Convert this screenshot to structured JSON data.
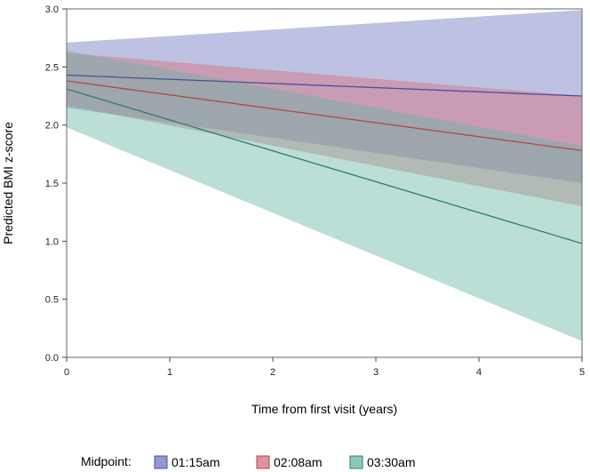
{
  "chart_data": {
    "type": "line",
    "title": "",
    "xlabel": "Time from first visit (years)",
    "ylabel": "Predicted BMI z-score",
    "xlim": [
      0,
      5
    ],
    "ylim": [
      0,
      3
    ],
    "x_ticks": [
      "0",
      "1",
      "2",
      "3",
      "4",
      "5"
    ],
    "y_ticks": [
      "0.0",
      "0.5",
      "1.0",
      "1.5",
      "2.0",
      "2.5",
      "3.0"
    ],
    "grid": false,
    "legend": {
      "title": "Midpoint:",
      "position": "bottom"
    },
    "series": [
      {
        "name": "01:15am",
        "line_color": "#4a4f9e",
        "band_color": "#6f77bf",
        "x": [
          0,
          5
        ],
        "y": [
          2.43,
          2.25
        ],
        "lower": [
          2.15,
          1.5
        ],
        "upper": [
          2.71,
          2.99
        ]
      },
      {
        "name": "02:08am",
        "line_color": "#b04a45",
        "band_color": "#d86e7c",
        "x": [
          0,
          5
        ],
        "y": [
          2.38,
          1.78
        ],
        "lower": [
          2.17,
          1.3
        ],
        "upper": [
          2.62,
          2.25
        ]
      },
      {
        "name": "03:30am",
        "line_color": "#2e7d6e",
        "band_color": "#68b5a5",
        "x": [
          0,
          5
        ],
        "y": [
          2.31,
          0.98
        ],
        "lower": [
          1.98,
          0.14
        ],
        "upper": [
          2.64,
          1.82
        ]
      }
    ]
  }
}
